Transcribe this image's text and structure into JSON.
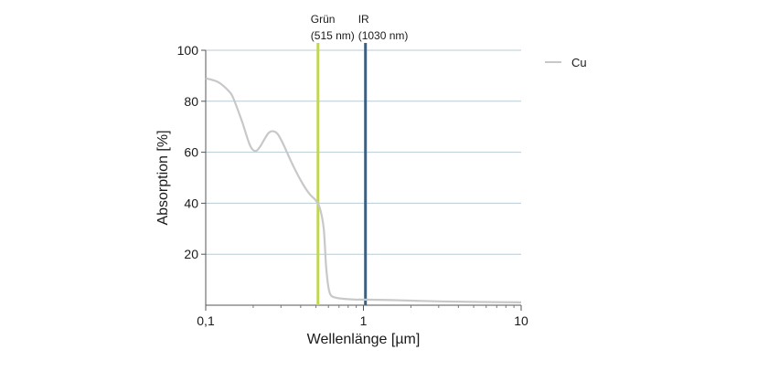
{
  "chart_data": {
    "type": "line",
    "xlabel": "Wellenlänge [µm]",
    "ylabel": "Absorption [%]",
    "x_scale": "log",
    "xlim": [
      0.1,
      10
    ],
    "ylim": [
      0,
      100
    ],
    "x_ticks": [
      0.1,
      1,
      10
    ],
    "x_tick_labels": [
      "0,1",
      "1",
      "10"
    ],
    "y_ticks": [
      20,
      40,
      60,
      80,
      100
    ],
    "y_tick_labels": [
      "20",
      "40",
      "60",
      "80",
      "100"
    ],
    "grid": "horizontal",
    "legend_position": "right",
    "series": [
      {
        "name": "Cu",
        "color": "#c8c8c8",
        "x": [
          0.1,
          0.12,
          0.14,
          0.15,
          0.17,
          0.19,
          0.205,
          0.22,
          0.25,
          0.275,
          0.3,
          0.35,
          0.4,
          0.45,
          0.5,
          0.53,
          0.56,
          0.58,
          0.6,
          0.62,
          0.66,
          0.75,
          0.9,
          1.0,
          1.5,
          2,
          3,
          5,
          10
        ],
        "y": [
          89,
          87.5,
          84,
          81,
          72,
          63,
          60.5,
          62,
          67.5,
          68,
          65,
          56,
          49,
          44,
          41,
          38,
          30,
          15,
          7,
          4,
          3,
          2.5,
          2.2,
          2.2,
          2,
          1.8,
          1.5,
          1.3,
          1.1
        ]
      }
    ],
    "markers": [
      {
        "label_line1": "Grün",
        "label_line2": "(515 nm)",
        "x": 0.515,
        "color": "#c3d653"
      },
      {
        "label_line1": "IR",
        "label_line2": "(1030 nm)",
        "x": 1.03,
        "color": "#3f5f7f"
      }
    ]
  }
}
